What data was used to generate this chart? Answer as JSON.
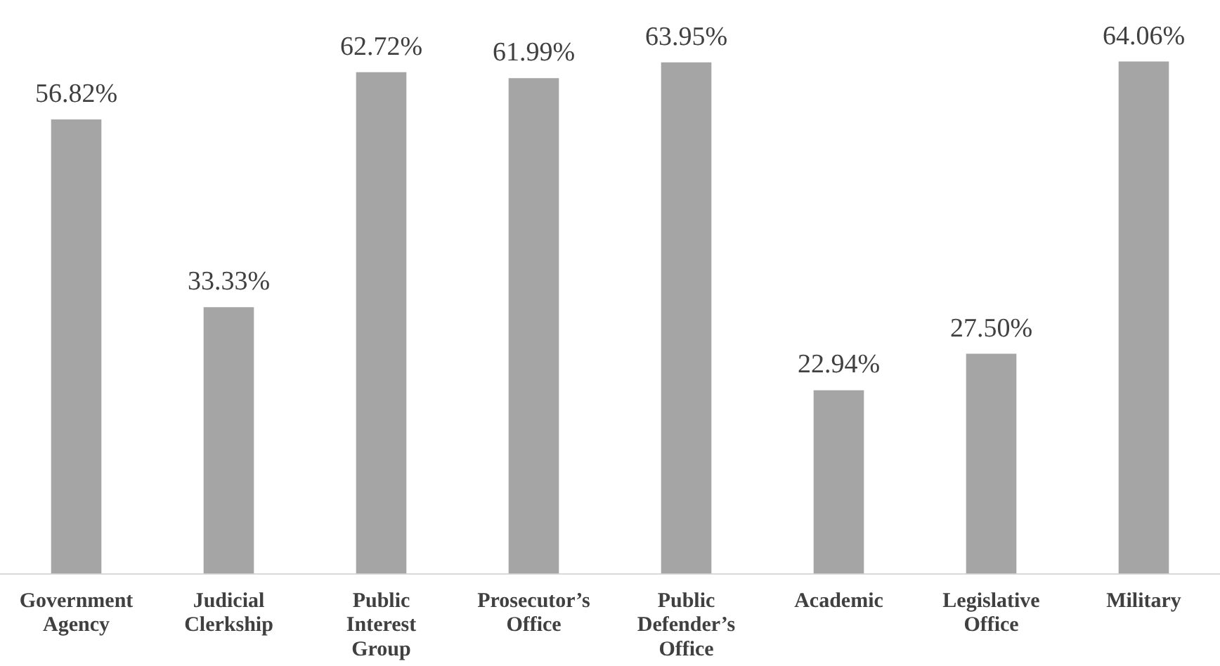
{
  "chart_data": {
    "type": "bar",
    "categories": [
      "Government Agency",
      "Judicial Clerkship",
      "Public Interest Group",
      "Prosecutor’s Office",
      "Public Defender’s Office",
      "Academic",
      "Legislative Office",
      "Military"
    ],
    "values": [
      56.82,
      33.33,
      62.72,
      61.99,
      63.95,
      22.94,
      27.5,
      64.06
    ],
    "value_labels": [
      "56.82%",
      "33.33%",
      "62.72%",
      "61.99%",
      "63.95%",
      "22.94%",
      "27.50%",
      "64.06%"
    ],
    "color": "#a5a5a5",
    "grid": false,
    "legend": false
  }
}
